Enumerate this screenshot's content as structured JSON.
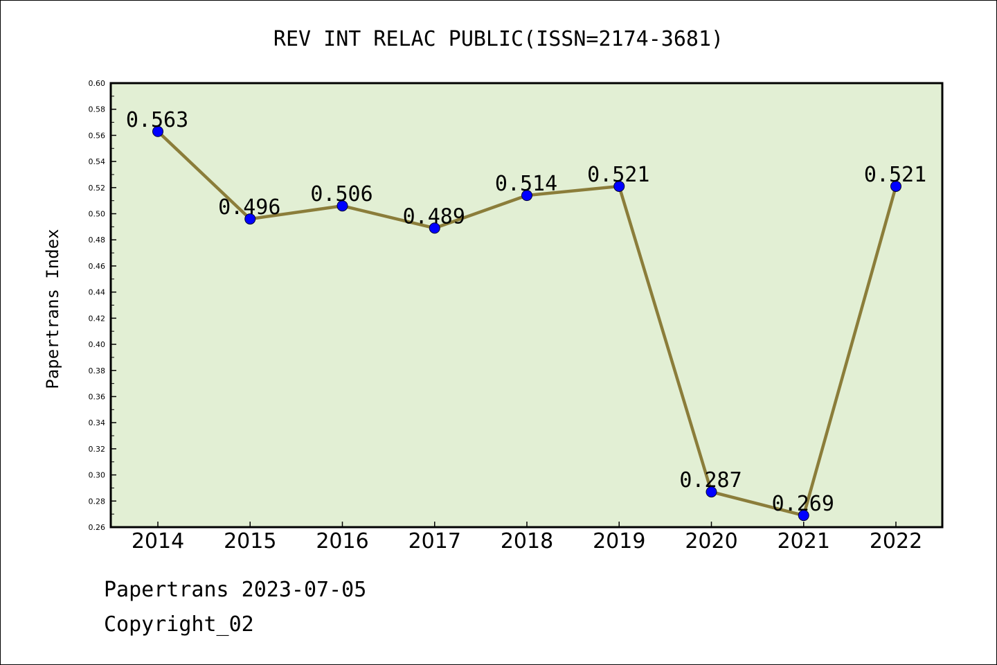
{
  "chart_data": {
    "type": "line",
    "title": "REV INT RELAC PUBLIC(ISSN=2174-3681)",
    "xlabel": "",
    "ylabel": "Papertrans Index",
    "categories": [
      "2014",
      "2015",
      "2016",
      "2017",
      "2018",
      "2019",
      "2020",
      "2021",
      "2022"
    ],
    "series": [
      {
        "values": [
          0.563,
          0.496,
          0.506,
          0.489,
          0.514,
          0.521,
          0.287,
          0.269,
          0.521
        ]
      }
    ],
    "data_labels": [
      "0.563",
      "0.496",
      "0.506",
      "0.489",
      "0.514",
      "0.521",
      "0.287",
      "0.269",
      "0.521"
    ],
    "ylim": [
      0.26,
      0.6
    ],
    "y_ticks": [
      "0.26",
      "0.28",
      "0.30",
      "0.32",
      "0.34",
      "0.36",
      "0.38",
      "0.40",
      "0.42",
      "0.44",
      "0.46",
      "0.48",
      "0.50",
      "0.52",
      "0.54",
      "0.56",
      "0.58",
      "0.60"
    ],
    "grid": false,
    "colors": {
      "plot_background": "#e2efd4",
      "line": "#8b7d3a",
      "marker": "#0000ff"
    }
  },
  "footer": {
    "date_line": "Papertrans 2023-07-05",
    "copyright": "Copyright_02"
  }
}
